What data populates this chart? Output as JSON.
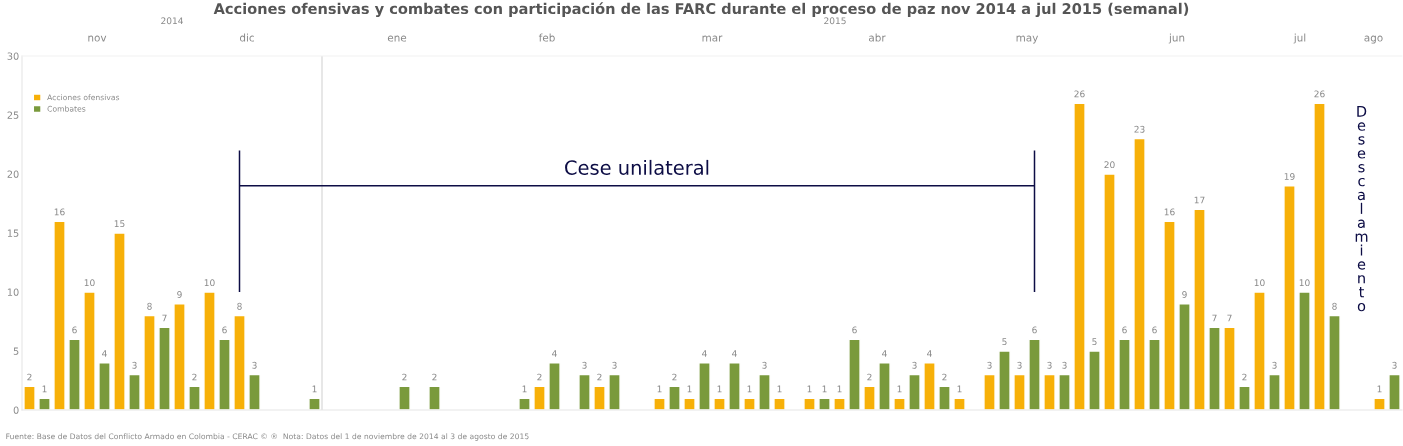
{
  "chart_data": {
    "type": "bar",
    "title": "Acciones ofensivas y combates con participación de las FARC durante el proceso de paz nov 2014 a jul 2015 (semanal)",
    "categories": [
      null,
      null,
      null,
      null,
      null,
      null,
      null,
      null,
      null,
      null,
      null,
      null,
      null,
      null,
      null,
      null,
      null,
      null,
      null,
      null,
      null,
      null,
      null,
      null,
      null,
      null,
      null,
      null,
      null,
      null,
      null,
      null,
      null,
      null,
      null,
      null,
      null,
      null,
      null,
      null,
      null,
      null,
      null,
      null,
      null,
      null,
      null,
      null,
      null,
      null,
      null,
      null,
      null,
      null,
      null,
      null,
      null,
      null,
      null,
      null,
      null,
      null,
      null,
      null,
      null,
      null,
      null,
      null,
      null,
      null,
      null,
      null,
      null,
      null,
      null,
      null,
      null,
      null,
      null,
      null,
      null,
      null,
      null,
      null,
      null,
      null,
      null,
      null,
      null,
      null,
      null,
      null
    ],
    "series": [
      {
        "name": "Acciones ofensivas",
        "color": "#f7b008",
        "values": [
          2,
          null,
          16,
          null,
          10,
          null,
          15,
          null,
          8,
          null,
          9,
          null,
          10,
          null,
          8,
          null,
          null,
          null,
          null,
          null,
          null,
          null,
          null,
          null,
          null,
          null,
          null,
          null,
          null,
          null,
          null,
          null,
          null,
          null,
          2,
          null,
          null,
          null,
          2,
          null,
          null,
          null,
          1,
          null,
          1,
          null,
          1,
          null,
          1,
          null,
          1,
          null,
          1,
          null,
          1,
          null,
          2,
          null,
          1,
          null,
          4,
          null,
          1,
          null,
          3,
          null,
          3,
          null,
          3,
          null,
          26,
          null,
          20,
          null,
          23,
          null,
          16,
          null,
          17,
          null,
          7,
          null,
          10,
          null,
          19,
          null,
          26,
          null,
          null,
          null,
          1,
          null
        ]
      },
      {
        "name": "Combates",
        "color": "#7a9a3c",
        "values": [
          null,
          1,
          null,
          6,
          null,
          4,
          null,
          3,
          null,
          7,
          null,
          2,
          null,
          6,
          null,
          3,
          null,
          null,
          null,
          1,
          null,
          null,
          null,
          null,
          null,
          2,
          null,
          2,
          null,
          null,
          null,
          null,
          null,
          1,
          null,
          4,
          null,
          3,
          null,
          3,
          null,
          null,
          null,
          2,
          null,
          4,
          null,
          4,
          null,
          3,
          null,
          null,
          null,
          1,
          null,
          6,
          null,
          4,
          null,
          3,
          null,
          2,
          null,
          null,
          null,
          5,
          null,
          6,
          null,
          3,
          null,
          5,
          null,
          6,
          null,
          6,
          null,
          9,
          null,
          7,
          null,
          2,
          null,
          3,
          null,
          10,
          null,
          8,
          null,
          null,
          null,
          3
        ]
      }
    ],
    "ylim": [
      0,
      30
    ],
    "yticks": [
      0,
      5,
      10,
      15,
      20,
      25,
      30
    ],
    "data_labels": true,
    "legend": "top left",
    "grid": false,
    "annotations": [
      "Desescalamiento",
      "Fuente: Base de Datos del Conflicto Armado en Colombia - CERAC © ®  Nota: Datos del 1 de noviembre de 2014 al 3 de agosto de 2015",
      "Cese unilateral",
      "2014",
      "2015",
      "nov",
      "dic",
      "ene",
      "feb",
      "mar",
      "abr",
      "may",
      "jun",
      "jul",
      "ago"
    ]
  }
}
